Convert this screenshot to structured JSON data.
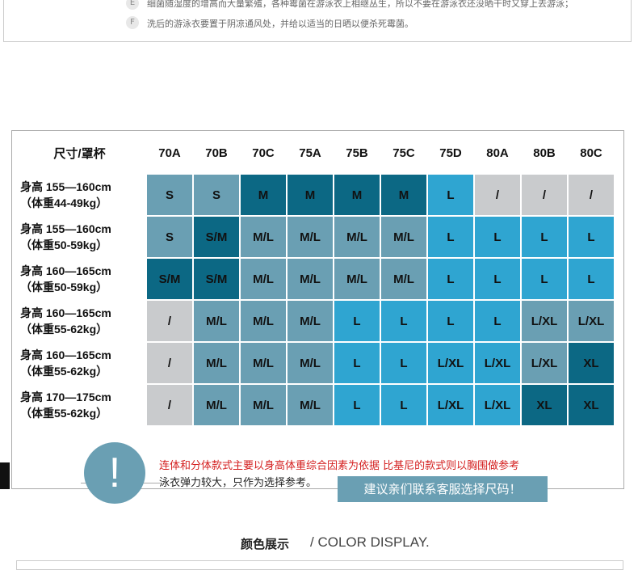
{
  "tips": [
    {
      "letter": "E",
      "text": "细菌随湿度的增高而大量繁殖，各种霉菌在游泳衣上相继丛生，所以不要在游泳衣还没晒干时又穿上去游泳；"
    },
    {
      "letter": "F",
      "text": "洗后的游泳衣要置于阴凉通风处，并给以适当的日晒以便杀死霉菌。"
    }
  ],
  "table": {
    "corner": "尺寸/罩杯",
    "columns": [
      "70A",
      "70B",
      "70C",
      "75A",
      "75B",
      "75C",
      "75D",
      "80A",
      "80B",
      "80C"
    ],
    "rows": [
      {
        "label": [
          "身高 155—160cm",
          "（体重44-49kg）"
        ],
        "cells": [
          "S",
          "S",
          "M",
          "M",
          "M",
          "M",
          "L",
          "/",
          "/",
          "/"
        ],
        "colors": [
          "#6a9fb3",
          "#6a9fb3",
          "#0c6884",
          "#0c6884",
          "#0c6884",
          "#0c6884",
          "#2fa5d1",
          "#c9cbcd",
          "#c9cbcd",
          "#c9cbcd"
        ]
      },
      {
        "label": [
          "身高 155—160cm",
          "（体重50-59kg）"
        ],
        "cells": [
          "S",
          "S/M",
          "M/L",
          "M/L",
          "M/L",
          "M/L",
          "L",
          "L",
          "L",
          "L"
        ],
        "colors": [
          "#6a9fb3",
          "#0c6884",
          "#6a9fb3",
          "#6a9fb3",
          "#6a9fb3",
          "#6a9fb3",
          "#2fa5d1",
          "#2fa5d1",
          "#2fa5d1",
          "#2fa5d1"
        ]
      },
      {
        "label": [
          "身高 160—165cm",
          "（体重50-59kg）"
        ],
        "cells": [
          "S/M",
          "S/M",
          "M/L",
          "M/L",
          "M/L",
          "M/L",
          "L",
          "L",
          "L",
          "L"
        ],
        "colors": [
          "#0c6884",
          "#0c6884",
          "#6a9fb3",
          "#6a9fb3",
          "#6a9fb3",
          "#6a9fb3",
          "#2fa5d1",
          "#2fa5d1",
          "#2fa5d1",
          "#2fa5d1"
        ]
      },
      {
        "label": [
          "身高 160—165cm",
          "（体重55-62kg）"
        ],
        "cells": [
          "/",
          "M/L",
          "M/L",
          "M/L",
          "L",
          "L",
          "L",
          "L",
          "L/XL",
          "L/XL"
        ],
        "colors": [
          "#c9cbcd",
          "#6a9fb3",
          "#6a9fb3",
          "#6a9fb3",
          "#2fa5d1",
          "#2fa5d1",
          "#2fa5d1",
          "#2fa5d1",
          "#6a9fb3",
          "#6a9fb3"
        ]
      },
      {
        "label": [
          "身高 160—165cm",
          "（体重55-62kg）"
        ],
        "cells": [
          "/",
          "M/L",
          "M/L",
          "M/L",
          "L",
          "L",
          "L/XL",
          "L/XL",
          "L/XL",
          "XL"
        ],
        "colors": [
          "#c9cbcd",
          "#6a9fb3",
          "#6a9fb3",
          "#6a9fb3",
          "#2fa5d1",
          "#2fa5d1",
          "#2fa5d1",
          "#2fa5d1",
          "#6a9fb3",
          "#0c6884"
        ]
      },
      {
        "label": [
          "身高 170—175cm",
          "（体重55-62kg）"
        ],
        "cells": [
          "/",
          "M/L",
          "M/L",
          "M/L",
          "L",
          "L",
          "L/XL",
          "L/XL",
          "XL",
          "XL"
        ],
        "colors": [
          "#c9cbcd",
          "#6a9fb3",
          "#6a9fb3",
          "#6a9fb3",
          "#2fa5d1",
          "#2fa5d1",
          "#2fa5d1",
          "#2fa5d1",
          "#0c6884",
          "#0c6884"
        ]
      }
    ]
  },
  "notice": {
    "primary": "连体和分体款式主要以身高体重综合因素为依据 比基尼的款式则以胸围做参考",
    "secondary": "泳衣弹力较大，只作为选择参考。",
    "button": "建议亲们联系客服选择尺码！"
  },
  "section": {
    "title": "颜色展示",
    "subtitle": "/ COLOR DISPLAY."
  }
}
